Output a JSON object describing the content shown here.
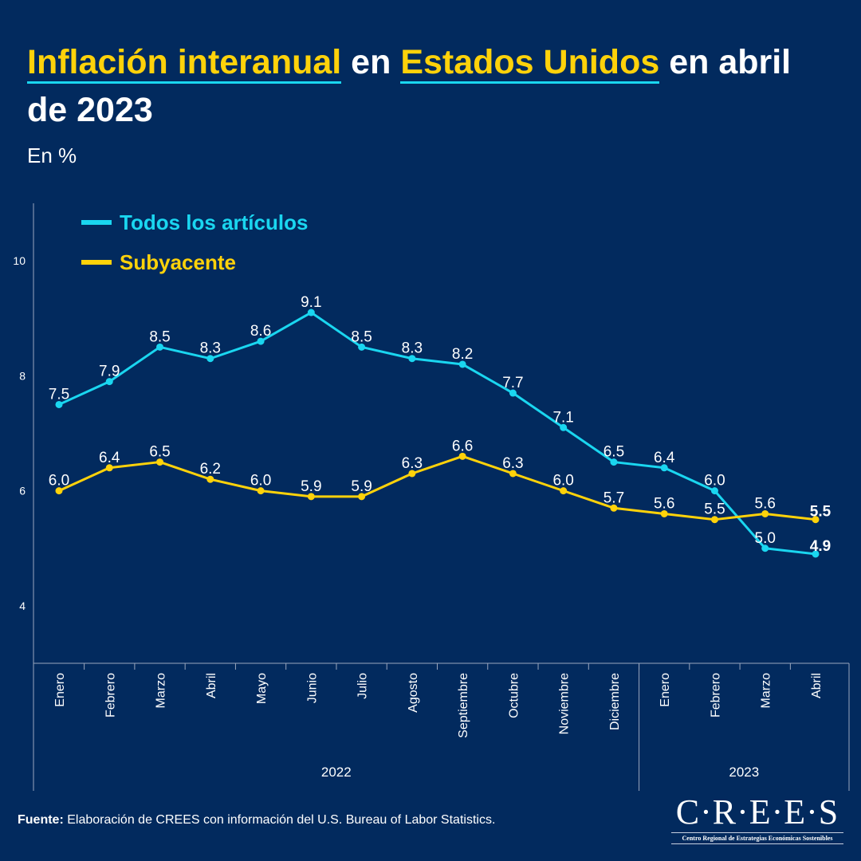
{
  "title": {
    "part1": "Inflación interanual",
    "part2": " en ",
    "part3": "Estados Unidos",
    "part4": " en abril de 2023"
  },
  "subtitle": "En %",
  "source": {
    "label": "Fuente:",
    "text": " Elaboración de CREES con información del U.S. Bureau of Labor Statistics."
  },
  "logo": {
    "name": "C·R·E·E·S",
    "tagline": "Centro Regional de Estrategias Económicas Sostenibles"
  },
  "chart_data": {
    "type": "line",
    "categories": [
      "Enero",
      "Febrero",
      "Marzo",
      "Abril",
      "Mayo",
      "Junio",
      "Julio",
      "Agosto",
      "Septiembre",
      "Octubre",
      "Noviembre",
      "Diciembre",
      "Enero",
      "Febrero",
      "Marzo",
      "Abril"
    ],
    "groups": [
      {
        "label": "2022",
        "count": 12
      },
      {
        "label": "2023",
        "count": 4
      }
    ],
    "series": [
      {
        "name": "Todos los artículos",
        "color": "#1ad6f0",
        "values": [
          7.5,
          7.9,
          8.5,
          8.3,
          8.6,
          9.1,
          8.5,
          8.3,
          8.2,
          7.7,
          7.1,
          6.5,
          6.4,
          6.0,
          5.0,
          4.9
        ]
      },
      {
        "name": "Subyacente",
        "color": "#ffd20a",
        "values": [
          6.0,
          6.4,
          6.5,
          6.2,
          6.0,
          5.9,
          5.9,
          6.3,
          6.6,
          6.3,
          6.0,
          5.7,
          5.6,
          5.5,
          5.6,
          5.5
        ]
      }
    ],
    "yticks": [
      4,
      6,
      8,
      10
    ],
    "ylim": [
      3,
      11
    ],
    "grid": false,
    "legend": "top-left",
    "xlabel": "",
    "ylabel": ""
  }
}
